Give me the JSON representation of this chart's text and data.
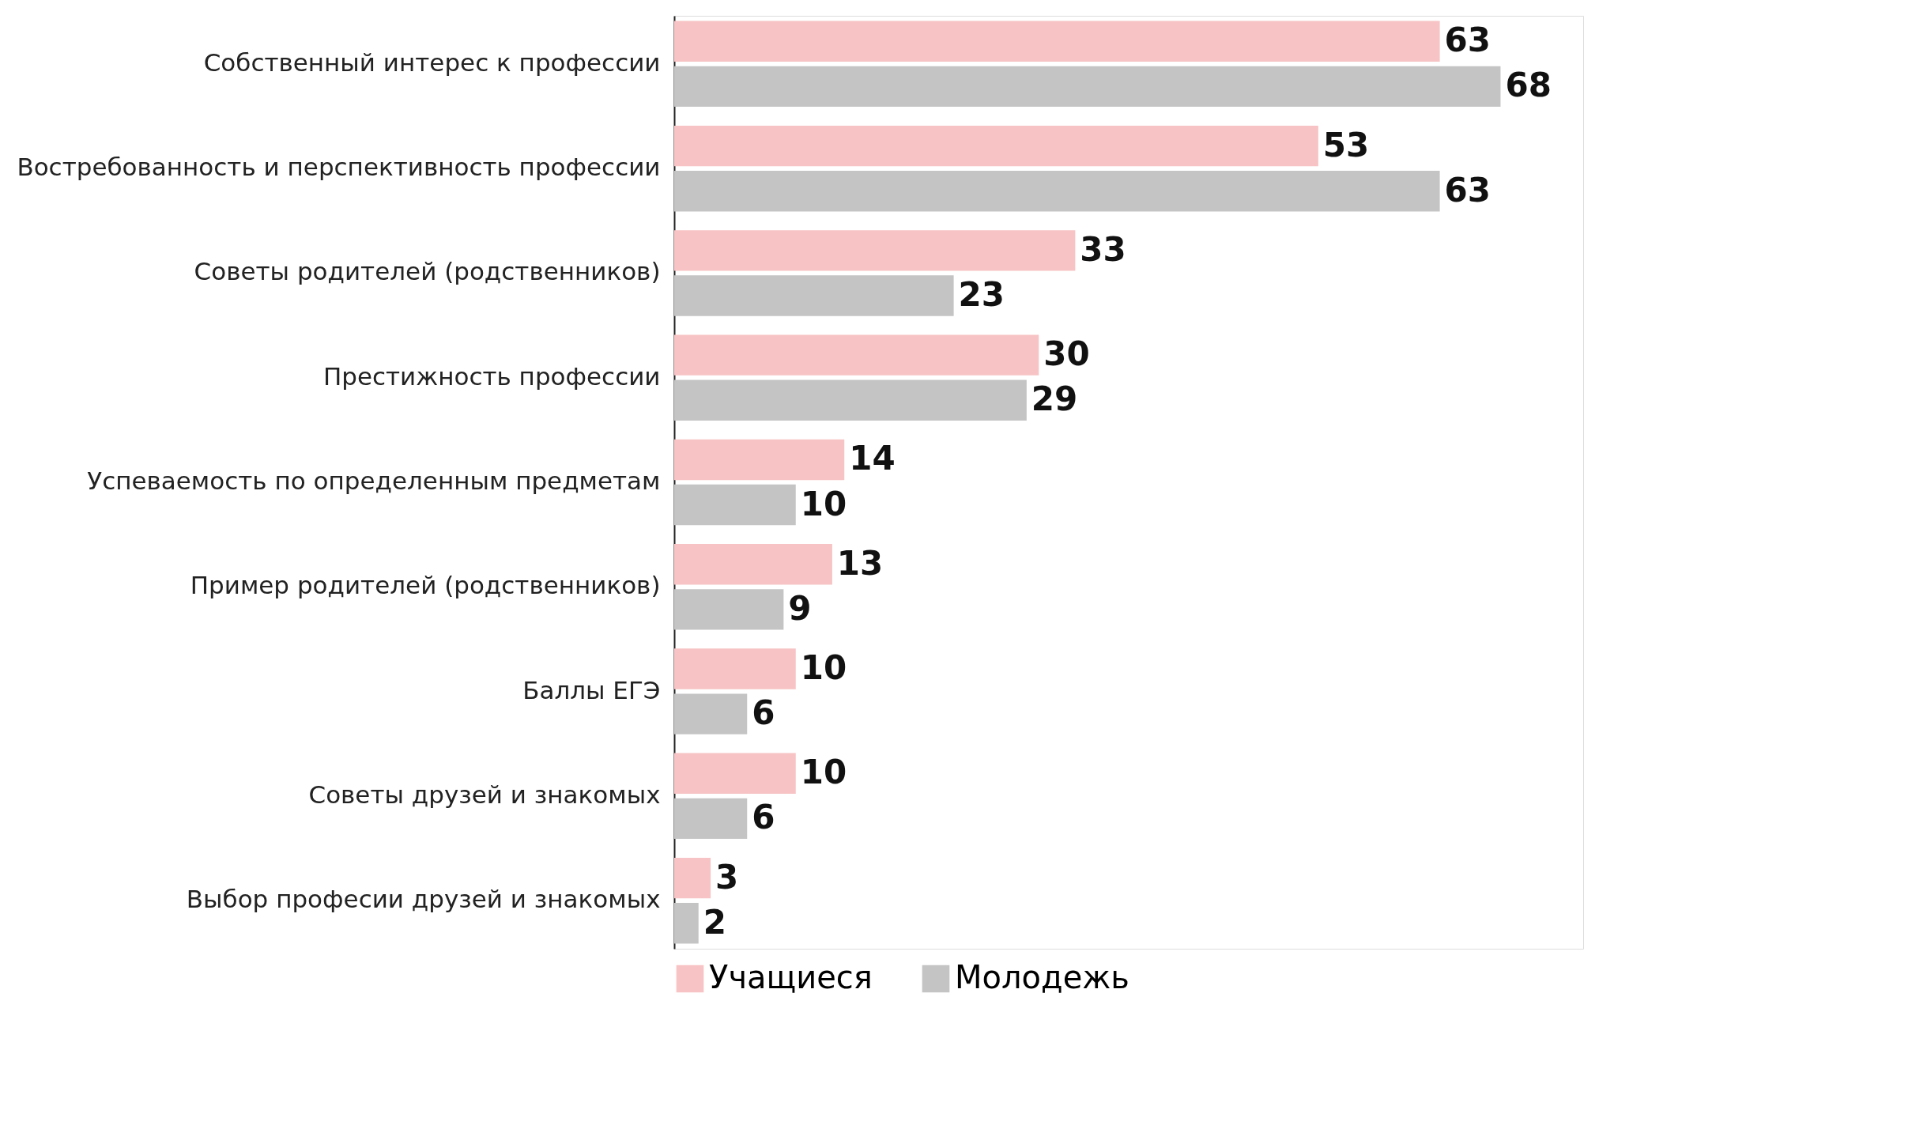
{
  "chart_data": {
    "type": "bar",
    "orientation": "horizontal",
    "data_labels": true,
    "legend": "bottom",
    "categories": [
      "Собственный интерес к профессии",
      "Востребованность и перспективность профессии",
      "Советы родителей (родственников)",
      "Престижность профессии",
      "Успеваемость по определенным предметам",
      "Пример родителей (родственников)",
      "Баллы ЕГЭ",
      "Советы друзей и знакомых",
      "Выбор професии друзей и знакомых"
    ],
    "series": [
      {
        "name": "Учащиеся",
        "color": "#f7c3c4",
        "values": [
          63,
          53,
          33,
          30,
          14,
          13,
          10,
          10,
          3
        ]
      },
      {
        "name": "Молодежь",
        "color": "#c4c4c4",
        "values": [
          68,
          63,
          23,
          29,
          10,
          9,
          6,
          6,
          2
        ]
      }
    ]
  }
}
